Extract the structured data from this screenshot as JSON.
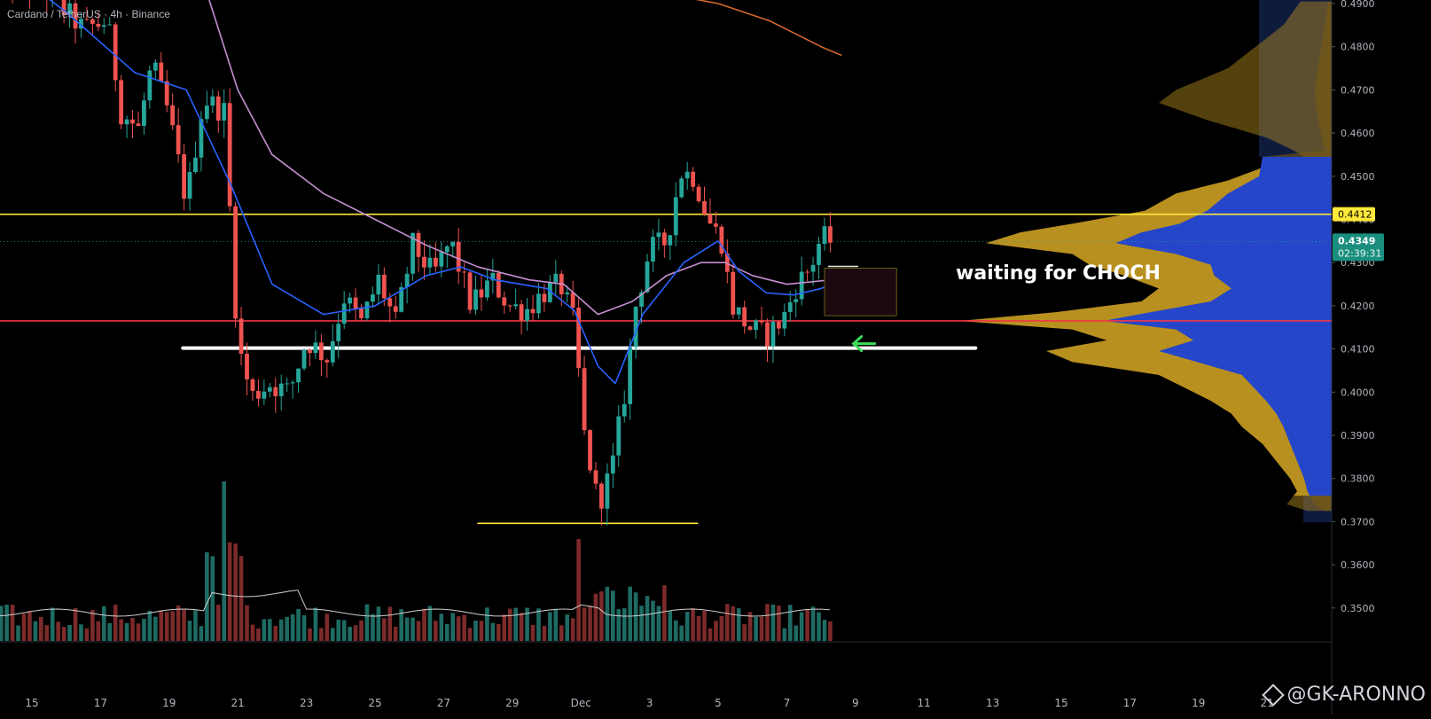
{
  "header": {
    "title": "Cardano / TetherUS · 4h · Binance"
  },
  "watermark": {
    "text": "@GK-ARONNO",
    "icon": "binance-icon"
  },
  "annotation": {
    "text": "waiting for CHOCH"
  },
  "price_labels": {
    "yellow_level": "0.4412",
    "last_price": "0.4349",
    "countdown": "02:39:31"
  },
  "colors": {
    "up": "#26a69a",
    "down": "#ef5350",
    "ma_blue": "#2962ff",
    "ma_pink": "#c48fd0",
    "ma_orange": "#d4692a",
    "level_yellow": "#ffe93b",
    "level_red": "#f23645",
    "support_white": "#ffffff",
    "arrow": "#3ddc5a",
    "vp_gold": "#b8901f",
    "vp_blue": "#2546c9",
    "volume_ma": "#cfcfcf"
  },
  "chart_data": {
    "type": "candlestick",
    "title": "Cardano / TetherUS · 4h · Binance",
    "symbol": "ADAUSDT",
    "timeframe": "4h",
    "exchange": "Binance",
    "ylim": [
      0.343,
      0.4905
    ],
    "y_ticks": [
      "0.4900",
      "0.4800",
      "0.4700",
      "0.4600",
      "0.4500",
      "0.4400",
      "0.4300",
      "0.4200",
      "0.4100",
      "0.4000",
      "0.3900",
      "0.3800",
      "0.3700",
      "0.3600",
      "0.3500"
    ],
    "x_ticks": [
      "15",
      "17",
      "19",
      "21",
      "23",
      "25",
      "27",
      "29",
      "Dec",
      "3",
      "5",
      "7",
      "9",
      "11",
      "13",
      "15",
      "17",
      "19",
      "21"
    ],
    "close_path": [
      [
        14.0,
        0.496
      ],
      [
        15.5,
        0.492
      ],
      [
        16.5,
        0.484
      ],
      [
        17.2,
        0.486
      ],
      [
        17.6,
        0.465
      ],
      [
        18.1,
        0.461
      ],
      [
        18.5,
        0.476
      ],
      [
        19.0,
        0.464
      ],
      [
        19.5,
        0.444
      ],
      [
        20.0,
        0.468
      ],
      [
        20.6,
        0.465
      ],
      [
        21.0,
        0.411
      ],
      [
        21.4,
        0.399
      ],
      [
        21.9,
        0.402
      ],
      [
        22.5,
        0.4
      ],
      [
        23.0,
        0.412
      ],
      [
        23.6,
        0.408
      ],
      [
        24.1,
        0.422
      ],
      [
        24.6,
        0.416
      ],
      [
        25.1,
        0.426
      ],
      [
        25.6,
        0.416
      ],
      [
        26.1,
        0.434
      ],
      [
        26.7,
        0.427
      ],
      [
        27.2,
        0.435
      ],
      [
        27.8,
        0.42
      ],
      [
        28.4,
        0.426
      ],
      [
        28.9,
        0.42
      ],
      [
        29.4,
        0.419
      ],
      [
        29.9,
        0.423
      ],
      [
        30.4,
        0.425
      ],
      [
        30.8,
        0.416
      ],
      [
        31.1,
        0.39
      ],
      [
        31.5,
        0.374
      ],
      [
        31.9,
        0.382
      ],
      [
        32.3,
        0.401
      ],
      [
        32.6,
        0.42
      ],
      [
        33.0,
        0.433
      ],
      [
        33.5,
        0.435
      ],
      [
        33.9,
        0.451
      ],
      [
        34.3,
        0.45
      ],
      [
        34.7,
        0.44
      ],
      [
        35.1,
        0.435
      ],
      [
        35.4,
        0.42
      ],
      [
        35.9,
        0.415
      ],
      [
        36.4,
        0.413
      ],
      [
        36.9,
        0.417
      ],
      [
        37.3,
        0.425
      ],
      [
        37.7,
        0.429
      ],
      [
        38.0,
        0.436
      ],
      [
        38.3,
        0.4349
      ]
    ],
    "x_day_reference": "Dec = day 31 of the x index (Nov 15 = 15)",
    "ma_fast": [
      [
        14.0,
        0.5
      ],
      [
        16.0,
        0.488
      ],
      [
        18.0,
        0.474
      ],
      [
        19.5,
        0.47
      ],
      [
        20.8,
        0.448
      ],
      [
        22.0,
        0.425
      ],
      [
        23.5,
        0.418
      ],
      [
        25.0,
        0.42
      ],
      [
        26.5,
        0.427
      ],
      [
        27.5,
        0.429
      ],
      [
        28.5,
        0.426
      ],
      [
        30.0,
        0.424
      ],
      [
        30.8,
        0.419
      ],
      [
        31.5,
        0.406
      ],
      [
        32.0,
        0.402
      ],
      [
        32.8,
        0.418
      ],
      [
        34.0,
        0.43
      ],
      [
        35.0,
        0.435
      ],
      [
        35.6,
        0.428
      ],
      [
        36.4,
        0.423
      ],
      [
        37.2,
        0.4225
      ],
      [
        38.0,
        0.424
      ],
      [
        38.3,
        0.425
      ]
    ],
    "ma_mid": [
      [
        20.0,
        0.495
      ],
      [
        21.0,
        0.47
      ],
      [
        22.0,
        0.455
      ],
      [
        23.5,
        0.446
      ],
      [
        25.0,
        0.44
      ],
      [
        26.5,
        0.434
      ],
      [
        28.0,
        0.429
      ],
      [
        29.5,
        0.426
      ],
      [
        30.5,
        0.425
      ],
      [
        31.5,
        0.418
      ],
      [
        32.5,
        0.421
      ],
      [
        33.5,
        0.427
      ],
      [
        34.5,
        0.43
      ],
      [
        35.2,
        0.43
      ],
      [
        36.0,
        0.427
      ],
      [
        37.0,
        0.425
      ],
      [
        38.3,
        0.426
      ]
    ],
    "ma_slow": [
      [
        33.0,
        0.493
      ],
      [
        35.0,
        0.49
      ],
      [
        36.5,
        0.486
      ],
      [
        38.0,
        0.48
      ],
      [
        38.6,
        0.478
      ]
    ],
    "levels": [
      {
        "name": "resistance",
        "price": 0.4412,
        "x_from": 14,
        "x_to": 53
      },
      {
        "name": "red-level",
        "price": 0.4165,
        "x_from": 14,
        "x_to": 53
      },
      {
        "name": "support",
        "price": 0.4102,
        "x_from": 19.4,
        "x_to": 42.5
      },
      {
        "name": "swing-low",
        "price": 0.3696,
        "x_from": 28.0,
        "x_to": 34.4
      }
    ],
    "zone": {
      "x_from": 38.1,
      "x_to": 40.2,
      "price_top": 0.4287,
      "price_bottom": 0.4177
    },
    "arrow": {
      "x": 37.6,
      "price": 0.4102,
      "direction": "left"
    },
    "volume_profile": {
      "gold_widths": [
        [
          0.4905,
          18
        ],
        [
          0.485,
          28
        ],
        [
          0.48,
          44
        ],
        [
          0.475,
          60
        ],
        [
          0.47,
          90
        ],
        [
          0.467,
          100
        ],
        [
          0.463,
          72
        ],
        [
          0.459,
          38
        ],
        [
          0.456,
          22
        ],
        [
          0.4545,
          16
        ],
        [
          0.452,
          40
        ],
        [
          0.449,
          60
        ],
        [
          0.446,
          90
        ],
        [
          0.442,
          108
        ],
        [
          0.439,
          150
        ],
        [
          0.437,
          180
        ],
        [
          0.4345,
          200
        ],
        [
          0.432,
          150
        ],
        [
          0.4295,
          140
        ],
        [
          0.427,
          120
        ],
        [
          0.424,
          100
        ],
        [
          0.421,
          110
        ],
        [
          0.4185,
          160
        ],
        [
          0.4165,
          215
        ],
        [
          0.4145,
          150
        ],
        [
          0.412,
          130
        ],
        [
          0.4095,
          165
        ],
        [
          0.407,
          150
        ],
        [
          0.404,
          100
        ],
        [
          0.401,
          85
        ],
        [
          0.398,
          70
        ],
        [
          0.395,
          58
        ],
        [
          0.392,
          52
        ],
        [
          0.388,
          40
        ],
        [
          0.384,
          32
        ],
        [
          0.38,
          24
        ],
        [
          0.377,
          20
        ],
        [
          0.374,
          26
        ],
        [
          0.3725,
          14
        ]
      ],
      "blue_widths": [
        [
          0.4905,
          2
        ],
        [
          0.485,
          4
        ],
        [
          0.48,
          6
        ],
        [
          0.475,
          8
        ],
        [
          0.47,
          10
        ],
        [
          0.463,
          8
        ],
        [
          0.456,
          4
        ],
        [
          0.4545,
          40
        ],
        [
          0.45,
          42
        ],
        [
          0.446,
          60
        ],
        [
          0.442,
          72
        ],
        [
          0.439,
          88
        ],
        [
          0.437,
          110
        ],
        [
          0.4345,
          125
        ],
        [
          0.432,
          90
        ],
        [
          0.4295,
          70
        ],
        [
          0.427,
          68
        ],
        [
          0.424,
          58
        ],
        [
          0.421,
          70
        ],
        [
          0.4185,
          105
        ],
        [
          0.4165,
          132
        ],
        [
          0.4145,
          90
        ],
        [
          0.412,
          80
        ],
        [
          0.4095,
          100
        ],
        [
          0.407,
          78
        ],
        [
          0.404,
          52
        ],
        [
          0.401,
          45
        ],
        [
          0.398,
          38
        ],
        [
          0.395,
          32
        ],
        [
          0.392,
          28
        ],
        [
          0.388,
          24
        ],
        [
          0.384,
          20
        ],
        [
          0.38,
          16
        ],
        [
          0.377,
          14
        ],
        [
          0.374,
          10
        ],
        [
          0.3725,
          4
        ]
      ],
      "value_area": [
        0.376,
        0.4545
      ]
    },
    "volume": {
      "ma_level": 0.35,
      "max_spike_x": 20.6,
      "second_spike_x": 31.0
    },
    "grid": false,
    "legend": "none"
  }
}
